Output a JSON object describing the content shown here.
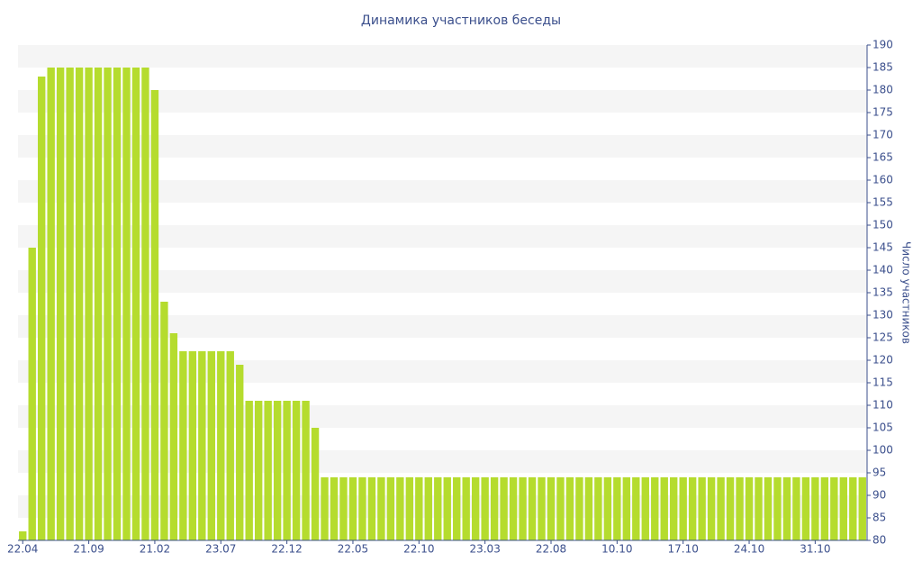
{
  "chart_data": {
    "type": "bar",
    "title": "Динамика участников беседы",
    "y_label": "Число участников",
    "categories": [
      "22.04",
      null,
      null,
      null,
      null,
      null,
      null,
      "21.09",
      null,
      null,
      null,
      null,
      null,
      null,
      "21.02",
      null,
      null,
      null,
      null,
      null,
      null,
      "23.07",
      null,
      null,
      null,
      null,
      null,
      null,
      "22.12",
      null,
      null,
      null,
      null,
      null,
      null,
      "22.05",
      null,
      null,
      null,
      null,
      null,
      null,
      "22.10",
      null,
      null,
      null,
      null,
      null,
      null,
      "23.03",
      null,
      null,
      null,
      null,
      null,
      null,
      "22.08",
      null,
      null,
      null,
      null,
      null,
      null,
      "10.10",
      null,
      null,
      null,
      null,
      null,
      null,
      "17.10",
      null,
      null,
      null,
      null,
      null,
      null,
      "24.10",
      null,
      null,
      null,
      null,
      null,
      null,
      "31.10",
      null,
      null,
      null,
      null,
      null
    ],
    "values": [
      82,
      145,
      183,
      185,
      185,
      185,
      185,
      185,
      185,
      185,
      185,
      185,
      185,
      185,
      180,
      133,
      126,
      122,
      122,
      122,
      122,
      122,
      122,
      119,
      111,
      111,
      111,
      111,
      111,
      111,
      111,
      105,
      94,
      94,
      94,
      94,
      94,
      94,
      94,
      94,
      94,
      94,
      94,
      94,
      94,
      94,
      94,
      94,
      94,
      94,
      94,
      94,
      94,
      94,
      94,
      94,
      94,
      94,
      94,
      94,
      94,
      94,
      94,
      94,
      94,
      94,
      94,
      94,
      94,
      94,
      94,
      94,
      94,
      94,
      94,
      94,
      94,
      94,
      94,
      94,
      94,
      94,
      94,
      94,
      94,
      94,
      94,
      94,
      94,
      94
    ],
    "color": "#b5dc2e",
    "ylim": [
      80,
      190
    ],
    "yticks": [
      80,
      85,
      90,
      95,
      100,
      105,
      110,
      115,
      120,
      125,
      130,
      135,
      140,
      145,
      150,
      155,
      160,
      165,
      170,
      175,
      180,
      185,
      190
    ],
    "y_axis_side": "right",
    "grid": "bands"
  }
}
